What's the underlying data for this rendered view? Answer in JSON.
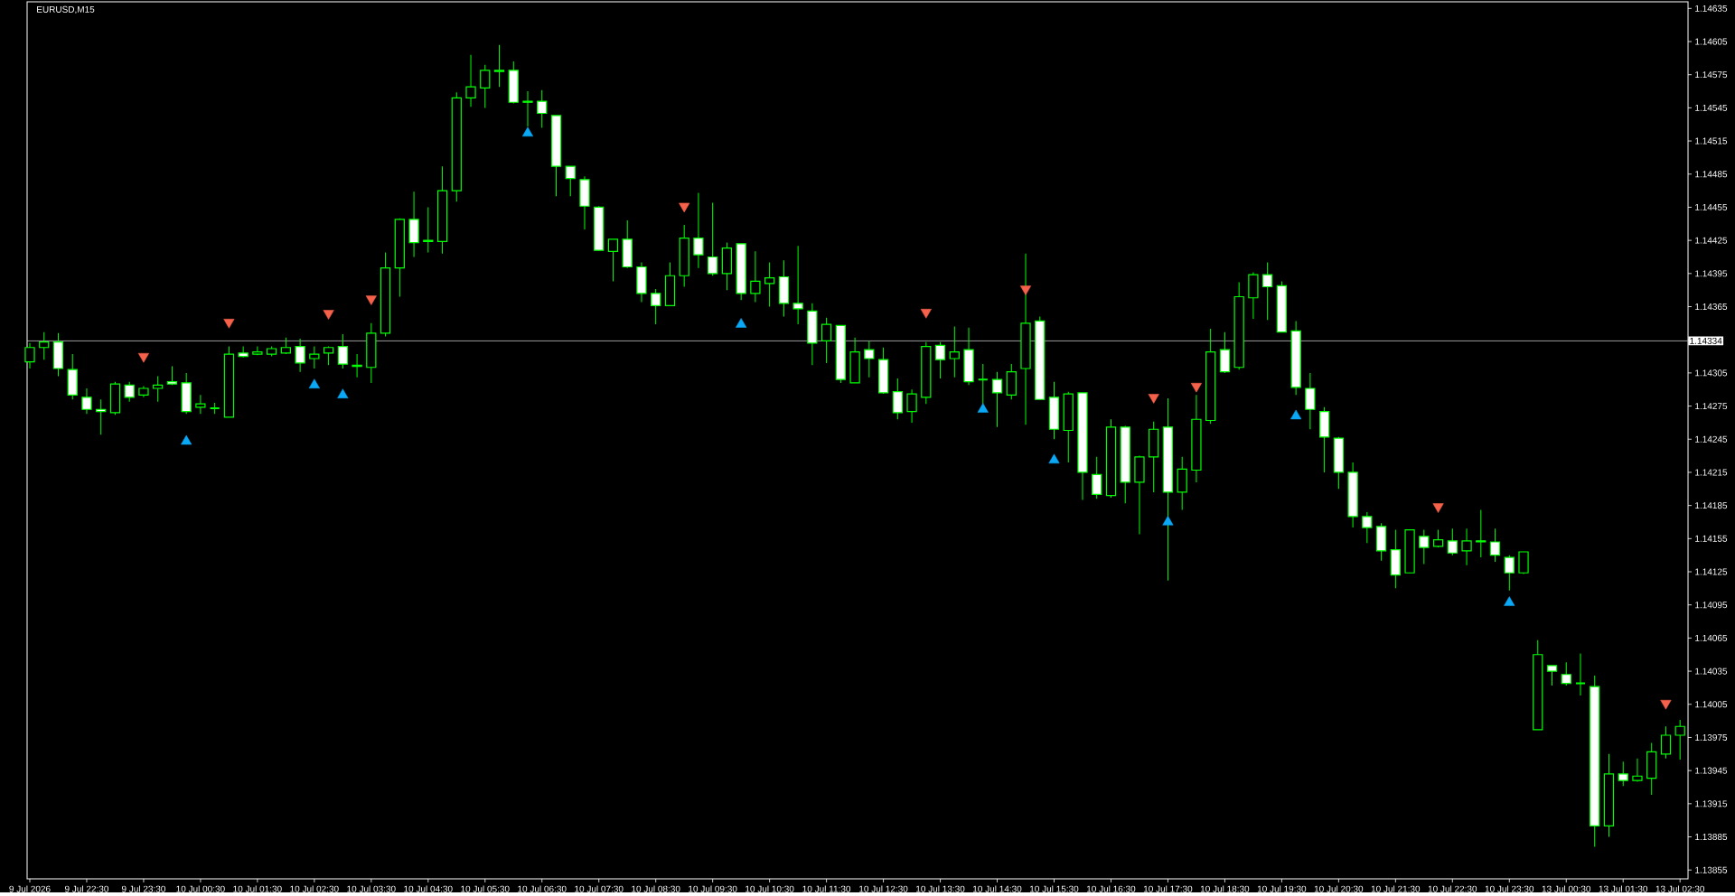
{
  "chart_data": {
    "type": "candlestick",
    "title": "EURUSD,M15",
    "categories": [
      "9 Jul 2026",
      null,
      null,
      null,
      "9 Jul 22:30",
      null,
      null,
      null,
      "9 Jul 23:30",
      null,
      null,
      null,
      "10 Jul 00:30",
      null,
      null,
      null,
      "10 Jul 01:30",
      null,
      null,
      null,
      "10 Jul 02:30",
      null,
      null,
      null,
      "10 Jul 03:30",
      null,
      null,
      null,
      "10 Jul 04:30",
      null,
      null,
      null,
      "10 Jul 05:30",
      null,
      null,
      null,
      "10 Jul 06:30",
      null,
      null,
      null,
      "10 Jul 07:30",
      null,
      null,
      null,
      "10 Jul 08:30",
      null,
      null,
      null,
      "10 Jul 09:30",
      null,
      null,
      null,
      "10 Jul 10:30",
      null,
      null,
      null,
      "10 Jul 11:30",
      null,
      null,
      null,
      "10 Jul 12:30",
      null,
      null,
      null,
      "10 Jul 13:30",
      null,
      null,
      null,
      "10 Jul 14:30",
      null,
      null,
      null,
      "10 Jul 15:30",
      null,
      null,
      null,
      "10 Jul 16:30",
      null,
      null,
      null,
      "10 Jul 17:30",
      null,
      null,
      null,
      "10 Jul 18:30",
      null,
      null,
      null,
      "10 Jul 19:30",
      null,
      null,
      null,
      "10 Jul 20:30",
      null,
      null,
      null,
      "10 Jul 21:30",
      null,
      null,
      null,
      "10 Jul 22:30",
      null,
      null,
      null,
      "10 Jul 23:30",
      null,
      null,
      null,
      "13 Jul 00:30",
      null,
      null,
      null,
      "13 Jul 01:30",
      null,
      null,
      null,
      "13 Jul 02:30"
    ],
    "ohlc": [
      [
        1.14315,
        1.14332,
        1.14309,
        1.14328
      ],
      [
        1.14328,
        1.14342,
        1.14317,
        1.14333
      ],
      [
        1.14333,
        1.14341,
        1.14302,
        1.14309
      ],
      [
        1.14308,
        1.14322,
        1.14281,
        1.14285
      ],
      [
        1.14283,
        1.14291,
        1.14268,
        1.14272
      ],
      [
        1.14272,
        1.14281,
        1.14249,
        1.1427
      ],
      [
        1.14269,
        1.14297,
        1.14267,
        1.14295
      ],
      [
        1.14294,
        1.14297,
        1.14279,
        1.14283
      ],
      [
        1.14285,
        1.14293,
        1.14283,
        1.14291
      ],
      [
        1.14291,
        1.14302,
        1.14279,
        1.14294
      ],
      [
        1.14297,
        1.14311,
        1.14294,
        1.14295
      ],
      [
        1.14296,
        1.14305,
        1.14268,
        1.1427
      ],
      [
        1.14274,
        1.14285,
        1.14268,
        1.14277
      ],
      [
        1.14273,
        1.14278,
        1.14268,
        1.14273
      ],
      [
        1.14265,
        1.14329,
        1.14265,
        1.14322
      ],
      [
        1.14323,
        1.14329,
        1.14319,
        1.1432
      ],
      [
        1.14322,
        1.14329,
        1.14321,
        1.14324
      ],
      [
        1.14322,
        1.14329,
        1.1432,
        1.14327
      ],
      [
        1.14323,
        1.14337,
        1.14322,
        1.14328
      ],
      [
        1.14329,
        1.14336,
        1.14306,
        1.14314
      ],
      [
        1.14318,
        1.14329,
        1.14309,
        1.14322
      ],
      [
        1.14323,
        1.14329,
        1.14312,
        1.14328
      ],
      [
        1.14329,
        1.1434,
        1.14309,
        1.14313
      ],
      [
        1.14312,
        1.14322,
        1.14301,
        1.14311
      ],
      [
        1.1431,
        1.1435,
        1.14296,
        1.14341
      ],
      [
        1.14341,
        1.14414,
        1.14338,
        1.144
      ],
      [
        1.144,
        1.14445,
        1.14374,
        1.14444
      ],
      [
        1.14444,
        1.14469,
        1.1441,
        1.14423
      ],
      [
        1.14424,
        1.14455,
        1.14414,
        1.14425
      ],
      [
        1.14424,
        1.14492,
        1.14413,
        1.1447
      ],
      [
        1.1447,
        1.14559,
        1.1446,
        1.14554
      ],
      [
        1.14554,
        1.14593,
        1.14546,
        1.14564
      ],
      [
        1.14563,
        1.14584,
        1.14545,
        1.14579
      ],
      [
        1.14578,
        1.14602,
        1.14564,
        1.14579
      ],
      [
        1.14579,
        1.14587,
        1.14549,
        1.1455
      ],
      [
        1.14551,
        1.1456,
        1.14528,
        1.1455
      ],
      [
        1.14551,
        1.14561,
        1.14527,
        1.1454
      ],
      [
        1.14538,
        1.14538,
        1.14465,
        1.14492
      ],
      [
        1.14492,
        1.14492,
        1.14465,
        1.14481
      ],
      [
        1.1448,
        1.14483,
        1.14435,
        1.14456
      ],
      [
        1.14455,
        1.14456,
        1.14416,
        1.14416
      ],
      [
        1.14415,
        1.14426,
        1.14388,
        1.14426
      ],
      [
        1.14426,
        1.14443,
        1.144,
        1.14401
      ],
      [
        1.14401,
        1.14405,
        1.14369,
        1.14377
      ],
      [
        1.14377,
        1.14381,
        1.14349,
        1.14366
      ],
      [
        1.14366,
        1.14405,
        1.14366,
        1.14393
      ],
      [
        1.14393,
        1.14439,
        1.14383,
        1.14427
      ],
      [
        1.14427,
        1.14468,
        1.144,
        1.14412
      ],
      [
        1.1441,
        1.14459,
        1.14393,
        1.14395
      ],
      [
        1.14395,
        1.14423,
        1.1438,
        1.14418
      ],
      [
        1.14422,
        1.14422,
        1.14371,
        1.14377
      ],
      [
        1.14377,
        1.14415,
        1.14369,
        1.14388
      ],
      [
        1.14386,
        1.14405,
        1.14365,
        1.14391
      ],
      [
        1.14392,
        1.14407,
        1.14356,
        1.14368
      ],
      [
        1.14368,
        1.1442,
        1.14349,
        1.14363
      ],
      [
        1.14361,
        1.14368,
        1.14312,
        1.14332
      ],
      [
        1.14334,
        1.14355,
        1.14314,
        1.14349
      ],
      [
        1.14348,
        1.14348,
        1.14296,
        1.14299
      ],
      [
        1.14296,
        1.14337,
        1.14296,
        1.14324
      ],
      [
        1.14326,
        1.14334,
        1.14301,
        1.14318
      ],
      [
        1.14317,
        1.14328,
        1.14286,
        1.14287
      ],
      [
        1.14288,
        1.143,
        1.14263,
        1.14269
      ],
      [
        1.1427,
        1.1429,
        1.1426,
        1.14286
      ],
      [
        1.14283,
        1.14333,
        1.14277,
        1.14329
      ],
      [
        1.1433,
        1.14333,
        1.143,
        1.14317
      ],
      [
        1.14318,
        1.14347,
        1.14301,
        1.14324
      ],
      [
        1.14326,
        1.14346,
        1.14294,
        1.14297
      ],
      [
        1.14299,
        1.14313,
        1.14277,
        1.14299
      ],
      [
        1.14299,
        1.14306,
        1.14256,
        1.14287
      ],
      [
        1.14285,
        1.14313,
        1.14281,
        1.14306
      ],
      [
        1.14309,
        1.14413,
        1.14258,
        1.1435
      ],
      [
        1.14352,
        1.14356,
        1.14281,
        1.14281
      ],
      [
        1.14283,
        1.14297,
        1.14245,
        1.14254
      ],
      [
        1.14253,
        1.14288,
        1.14224,
        1.14286
      ],
      [
        1.14287,
        1.14287,
        1.1419,
        1.14215
      ],
      [
        1.14213,
        1.14229,
        1.14191,
        1.14195
      ],
      [
        1.14194,
        1.14263,
        1.14192,
        1.14256
      ],
      [
        1.14256,
        1.14257,
        1.14187,
        1.14206
      ],
      [
        1.14206,
        1.1423,
        1.14159,
        1.14229
      ],
      [
        1.14229,
        1.14261,
        1.14197,
        1.14254
      ],
      [
        1.14256,
        1.14282,
        1.14117,
        1.14197
      ],
      [
        1.14197,
        1.14229,
        1.14181,
        1.14218
      ],
      [
        1.14217,
        1.14285,
        1.14206,
        1.14263
      ],
      [
        1.14262,
        1.14345,
        1.14259,
        1.14324
      ],
      [
        1.14326,
        1.14342,
        1.14305,
        1.14306
      ],
      [
        1.1431,
        1.14387,
        1.14308,
        1.14374
      ],
      [
        1.14373,
        1.14396,
        1.14354,
        1.14394
      ],
      [
        1.14394,
        1.14405,
        1.14353,
        1.14383
      ],
      [
        1.14384,
        1.14388,
        1.14342,
        1.14342
      ],
      [
        1.14343,
        1.14352,
        1.14285,
        1.14292
      ],
      [
        1.14291,
        1.14305,
        1.14254,
        1.14272
      ],
      [
        1.1427,
        1.14274,
        1.14215,
        1.14247
      ],
      [
        1.14246,
        1.14247,
        1.142,
        1.14215
      ],
      [
        1.14215,
        1.14224,
        1.14165,
        1.14175
      ],
      [
        1.14175,
        1.14179,
        1.14151,
        1.14165
      ],
      [
        1.14166,
        1.14169,
        1.14135,
        1.14144
      ],
      [
        1.14145,
        1.14163,
        1.1411,
        1.14122
      ],
      [
        1.14124,
        1.14163,
        1.14124,
        1.14163
      ],
      [
        1.14157,
        1.14163,
        1.14132,
        1.14147
      ],
      [
        1.14148,
        1.14163,
        1.14147,
        1.14154
      ],
      [
        1.14153,
        1.14164,
        1.1414,
        1.14142
      ],
      [
        1.14144,
        1.14164,
        1.14131,
        1.14153
      ],
      [
        1.14153,
        1.14181,
        1.14138,
        1.14152
      ],
      [
        1.14152,
        1.14164,
        1.14134,
        1.1414
      ],
      [
        1.14138,
        1.1414,
        1.14108,
        1.14124
      ],
      [
        1.14124,
        1.14143,
        1.14123,
        1.14143
      ],
      [
        1.13982,
        1.14063,
        1.13982,
        1.1405
      ],
      [
        1.1404,
        1.1404,
        1.14022,
        1.14035
      ],
      [
        1.14032,
        1.14043,
        1.14022,
        1.14024
      ],
      [
        1.14024,
        1.14051,
        1.14013,
        1.14024
      ],
      [
        1.14021,
        1.14031,
        1.13876,
        1.13895
      ],
      [
        1.13895,
        1.1396,
        1.13885,
        1.13942
      ],
      [
        1.13942,
        1.13953,
        1.13931,
        1.13936
      ],
      [
        1.13936,
        1.13956,
        1.13935,
        1.1394
      ],
      [
        1.13938,
        1.1397,
        1.13923,
        1.13962
      ],
      [
        1.1396,
        1.13985,
        1.13956,
        1.13977
      ],
      [
        1.13977,
        1.13991,
        1.13955,
        1.13985
      ]
    ],
    "series": [
      {
        "type": "scatter",
        "color": "#f5614a",
        "marker": "triangle",
        "values": [
          null,
          null,
          null,
          null,
          null,
          null,
          null,
          null,
          1.1432,
          null,
          null,
          null,
          null,
          null,
          1.14351,
          null,
          null,
          null,
          null,
          null,
          null,
          1.14359,
          null,
          null,
          1.14372,
          null,
          null,
          null,
          null,
          null,
          null,
          null,
          null,
          null,
          null,
          null,
          null,
          null,
          null,
          null,
          null,
          null,
          null,
          null,
          null,
          null,
          1.14456,
          null,
          null,
          null,
          null,
          null,
          null,
          null,
          null,
          null,
          null,
          null,
          null,
          null,
          null,
          null,
          null,
          1.1436,
          null,
          null,
          null,
          null,
          null,
          null,
          1.14381,
          null,
          null,
          null,
          null,
          null,
          null,
          null,
          null,
          1.14283,
          null,
          null,
          1.14293,
          null,
          null,
          null,
          null,
          null,
          null,
          null,
          null,
          null,
          null,
          null,
          null,
          null,
          null,
          null,
          null,
          1.14184,
          null,
          null,
          null,
          null,
          null,
          null,
          null,
          null,
          null,
          null,
          null,
          null,
          null,
          null,
          null,
          1.14006,
          null
        ]
      },
      {
        "type": "scatter",
        "color": "#0aa8f5",
        "marker": "triangle",
        "values": [
          null,
          null,
          null,
          null,
          null,
          null,
          null,
          null,
          null,
          null,
          null,
          1.14243,
          null,
          null,
          null,
          null,
          null,
          null,
          null,
          null,
          1.14294,
          null,
          1.14285,
          null,
          null,
          null,
          null,
          null,
          null,
          null,
          null,
          null,
          null,
          null,
          null,
          1.14522,
          null,
          null,
          null,
          null,
          null,
          null,
          null,
          null,
          null,
          null,
          null,
          null,
          null,
          null,
          1.14349,
          null,
          null,
          null,
          null,
          null,
          null,
          null,
          null,
          null,
          null,
          null,
          null,
          null,
          null,
          null,
          null,
          1.14272,
          null,
          null,
          null,
          null,
          1.14226,
          null,
          null,
          null,
          null,
          null,
          null,
          null,
          1.1417,
          null,
          null,
          null,
          null,
          null,
          null,
          null,
          null,
          1.14266,
          null,
          null,
          null,
          null,
          null,
          null,
          null,
          null,
          null,
          null,
          null,
          null,
          null,
          null,
          1.14097,
          null,
          null,
          null,
          null,
          null,
          null,
          null,
          null,
          null,
          null,
          null,
          null
        ]
      }
    ],
    "ylim": [
      1.13847,
      1.14641
    ],
    "yticks": [
      1.13855,
      1.13885,
      1.13915,
      1.13945,
      1.13975,
      1.14005,
      1.14035,
      1.14065,
      1.14095,
      1.14125,
      1.14155,
      1.14185,
      1.14215,
      1.14245,
      1.14275,
      1.14305,
      {
        "value": 1.14335,
        "label": null
      },
      1.14365,
      1.14395,
      1.14425,
      1.14455,
      1.14485,
      1.14515,
      1.14545,
      1.14575,
      1.14605,
      1.14635
    ],
    "ref_lines": [
      {
        "axis": "y",
        "value": 1.14334,
        "label": "1.14334",
        "color": "#c0c0c0"
      }
    ]
  }
}
